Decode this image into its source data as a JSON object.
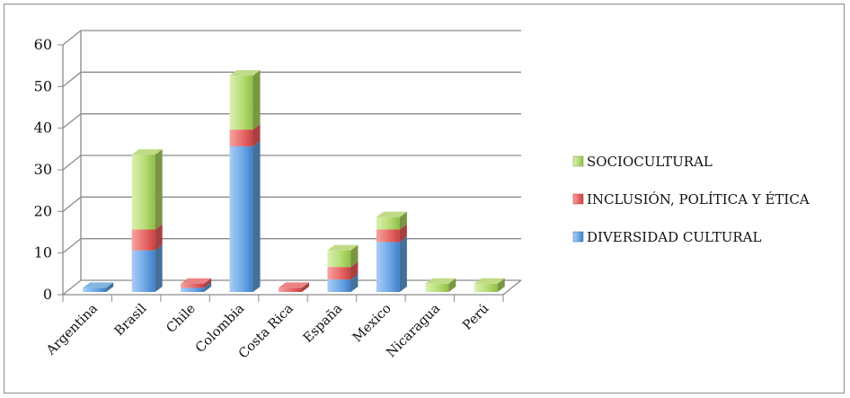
{
  "chart_data": {
    "type": "bar",
    "stacked": true,
    "three_d": true,
    "title": "",
    "xlabel": "",
    "ylabel": "",
    "ylim": [
      0,
      60
    ],
    "yticks": [
      0,
      10,
      20,
      30,
      40,
      50,
      60
    ],
    "grid": true,
    "legend_position": "right",
    "categories": [
      "Argentina",
      "Brasil",
      "Chile",
      "Colombia",
      "Costa Rica",
      "España",
      "Mexico",
      "Nicaragua",
      "Perú"
    ],
    "series": [
      {
        "name": "DIVERSIDAD CULTURAL",
        "color": "#5b9bd5",
        "values": [
          1,
          10,
          1,
          35,
          0,
          3,
          12,
          0,
          0
        ]
      },
      {
        "name": "INCLUSIÓN, POLÍTICA Y ÉTICA",
        "color": "#e55a5a",
        "values": [
          0,
          5,
          1,
          4,
          1,
          3,
          3,
          0,
          0
        ]
      },
      {
        "name": "SOCIOCULTURAL",
        "color": "#a9cf5e",
        "values": [
          0,
          18,
          0,
          13,
          0,
          4,
          3,
          2,
          2
        ]
      }
    ],
    "legend_order": [
      "SOCIOCULTURAL",
      "INCLUSIÓN, POLÍTICA Y ÉTICA",
      "DIVERSIDAD CULTURAL"
    ]
  }
}
